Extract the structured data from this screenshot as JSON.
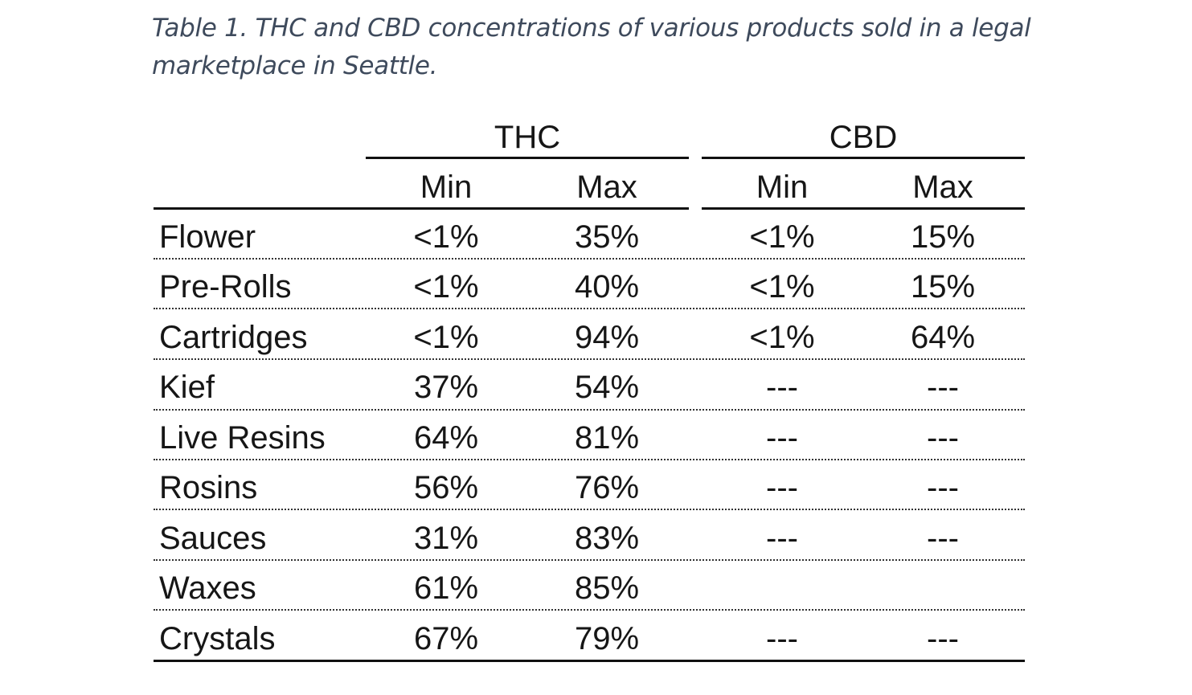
{
  "caption": "Table 1. THC and CBD concentrations of various products sold in a legal marketplace in Seattle.",
  "table": {
    "group_headers": [
      "THC",
      "CBD"
    ],
    "sub_headers": [
      "Min",
      "Max",
      "Min",
      "Max"
    ],
    "rows": [
      {
        "product": "Flower",
        "thc_min": "<1%",
        "thc_max": "35%",
        "cbd_min": "<1%",
        "cbd_max": "15%"
      },
      {
        "product": "Pre-Rolls",
        "thc_min": "<1%",
        "thc_max": "40%",
        "cbd_min": "<1%",
        "cbd_max": "15%"
      },
      {
        "product": "Cartridges",
        "thc_min": "<1%",
        "thc_max": "94%",
        "cbd_min": "<1%",
        "cbd_max": "64%"
      },
      {
        "product": "Kief",
        "thc_min": "37%",
        "thc_max": "54%",
        "cbd_min": "---",
        "cbd_max": "---"
      },
      {
        "product": "Live Resins",
        "thc_min": "64%",
        "thc_max": "81%",
        "cbd_min": "---",
        "cbd_max": "---"
      },
      {
        "product": "Rosins",
        "thc_min": "56%",
        "thc_max": "76%",
        "cbd_min": "---",
        "cbd_max": "---"
      },
      {
        "product": "Sauces",
        "thc_min": "31%",
        "thc_max": "83%",
        "cbd_min": "---",
        "cbd_max": "---"
      },
      {
        "product": "Waxes",
        "thc_min": "61%",
        "thc_max": "85%",
        "cbd_min": "",
        "cbd_max": ""
      },
      {
        "product": "Crystals",
        "thc_min": "67%",
        "thc_max": "79%",
        "cbd_min": "---",
        "cbd_max": "---"
      }
    ]
  }
}
